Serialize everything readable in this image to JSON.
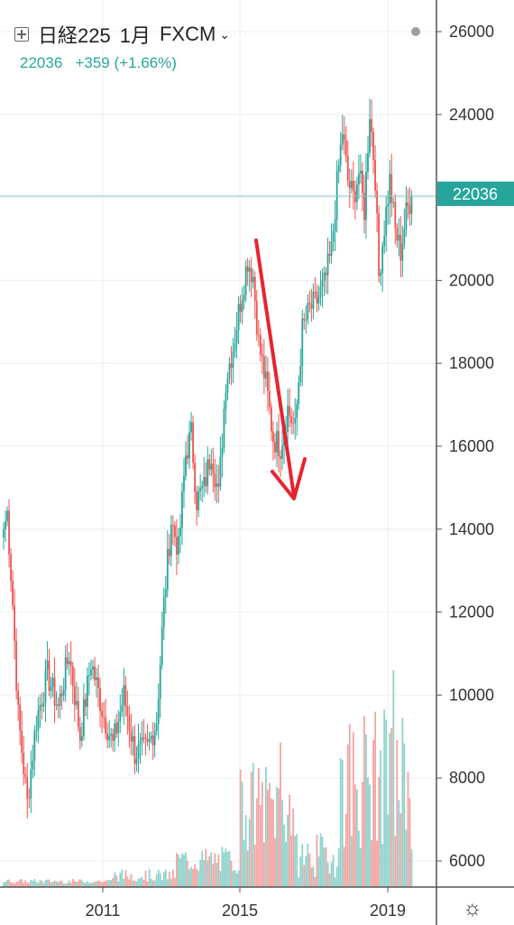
{
  "header": {
    "symbol": "日経225",
    "interval": "1月",
    "source": "FXCM",
    "last_price": "22036",
    "change": "+359 (+1.66%)"
  },
  "price_label": "22036",
  "colors": {
    "up": "#26a69a",
    "down": "#ef5350",
    "up_vol": "#8fd3cc",
    "down_vol": "#f4a4a2",
    "axis": "#555555",
    "annotation": "#e8232f"
  },
  "chart_data": {
    "type": "candlestick",
    "y_ticks": [
      6000,
      8000,
      10000,
      12000,
      14000,
      16000,
      18000,
      20000,
      22000,
      24000,
      26000
    ],
    "x_ticks": [
      "2011",
      "2015",
      "2019"
    ],
    "ylim": [
      5400,
      26600
    ],
    "last_price": 22036,
    "anchors": [
      {
        "t": 0,
        "v": 14000
      },
      {
        "t": 2,
        "v": 14400
      },
      {
        "t": 5,
        "v": 12200
      },
      {
        "t": 8,
        "v": 9500
      },
      {
        "t": 13,
        "v": 7400
      },
      {
        "t": 18,
        "v": 9400
      },
      {
        "t": 24,
        "v": 10500
      },
      {
        "t": 30,
        "v": 9700
      },
      {
        "t": 36,
        "v": 11000
      },
      {
        "t": 42,
        "v": 9000
      },
      {
        "t": 48,
        "v": 10800
      },
      {
        "t": 55,
        "v": 9500
      },
      {
        "t": 60,
        "v": 8800
      },
      {
        "t": 66,
        "v": 10000
      },
      {
        "t": 72,
        "v": 8600
      },
      {
        "t": 79,
        "v": 8700
      },
      {
        "t": 84,
        "v": 9400
      },
      {
        "t": 88,
        "v": 12200
      },
      {
        "t": 92,
        "v": 14200
      },
      {
        "t": 96,
        "v": 13500
      },
      {
        "t": 100,
        "v": 15800
      },
      {
        "t": 103,
        "v": 16300
      },
      {
        "t": 106,
        "v": 14700
      },
      {
        "t": 110,
        "v": 15000
      },
      {
        "t": 114,
        "v": 15900
      },
      {
        "t": 118,
        "v": 14800
      },
      {
        "t": 122,
        "v": 17600
      },
      {
        "t": 126,
        "v": 18400
      },
      {
        "t": 130,
        "v": 19500
      },
      {
        "t": 134,
        "v": 20500
      },
      {
        "t": 137,
        "v": 20100
      },
      {
        "t": 140,
        "v": 18500
      },
      {
        "t": 144,
        "v": 17500
      },
      {
        "t": 148,
        "v": 16200
      },
      {
        "t": 152,
        "v": 16000
      },
      {
        "t": 156,
        "v": 16900
      },
      {
        "t": 160,
        "v": 16400
      },
      {
        "t": 164,
        "v": 18800
      },
      {
        "t": 168,
        "v": 19300
      },
      {
        "t": 172,
        "v": 19500
      },
      {
        "t": 176,
        "v": 19900
      },
      {
        "t": 180,
        "v": 20700
      },
      {
        "t": 183,
        "v": 22300
      },
      {
        "t": 186,
        "v": 23600
      },
      {
        "t": 189,
        "v": 22400
      },
      {
        "t": 192,
        "v": 22000
      },
      {
        "t": 195,
        "v": 22600
      },
      {
        "t": 198,
        "v": 21700
      },
      {
        "t": 201,
        "v": 24100
      },
      {
        "t": 204,
        "v": 22500
      },
      {
        "t": 206,
        "v": 20100
      },
      {
        "t": 209,
        "v": 21300
      },
      {
        "t": 212,
        "v": 22400
      },
      {
        "t": 215,
        "v": 21200
      },
      {
        "t": 218,
        "v": 20700
      },
      {
        "t": 221,
        "v": 21600
      },
      {
        "t": 224,
        "v": 22036
      }
    ]
  }
}
